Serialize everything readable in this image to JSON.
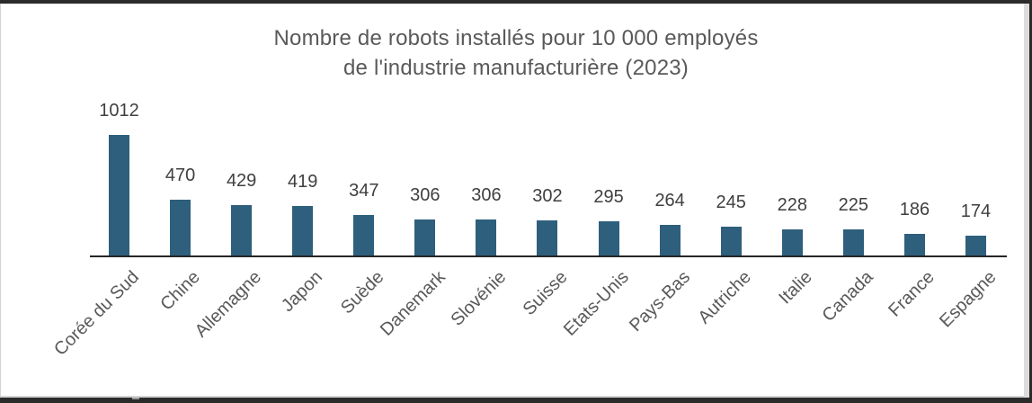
{
  "chart_data": {
    "type": "bar",
    "title": "Nombre de robots installés pour 10 000 employés de l'industrie manufacturière (2023)",
    "title_line1": "Nombre de robots installés pour 10 000 employés",
    "title_line2": "de l'industrie manufacturière (2023)",
    "categories": [
      "Corée du Sud",
      "Chine",
      "Allemagne",
      "Japon",
      "Suède",
      "Danemark",
      "Slovénie",
      "Suisse",
      "Etats-Unis",
      "Pays-Bas",
      "Autriche",
      "Italie",
      "Canada",
      "France",
      "Espagne"
    ],
    "values": [
      1012,
      470,
      429,
      419,
      347,
      306,
      306,
      302,
      295,
      264,
      245,
      228,
      225,
      186,
      174
    ],
    "xlabel": "",
    "ylabel": "",
    "ylim": [
      0,
      1080
    ],
    "grid": false,
    "legend": false,
    "data_labels": true,
    "x_tick_rotation_deg": 45,
    "bar_color": "#2e5f7d",
    "axis_color": "#262626",
    "title_color": "#595959",
    "value_label_color": "#3f3f3f",
    "category_label_color": "#595959"
  }
}
